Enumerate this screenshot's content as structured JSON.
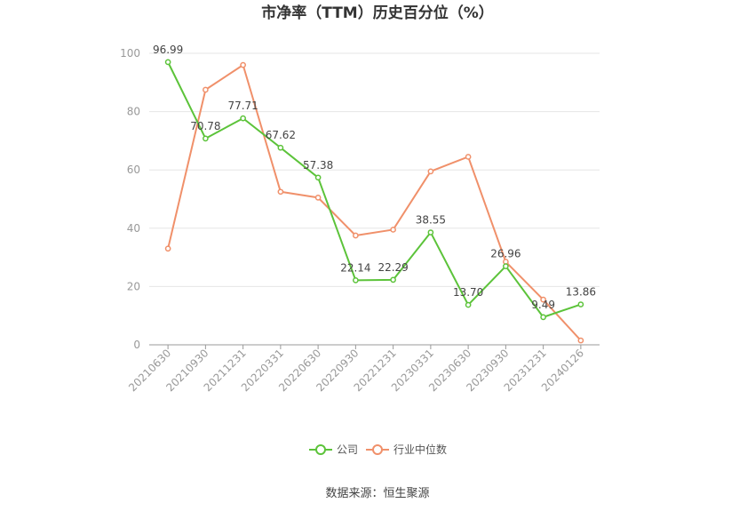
{
  "chart_data": {
    "type": "line",
    "title": "市净率（TTM）历史百分位（%）",
    "categories": [
      "20210630",
      "20210930",
      "20211231",
      "20220331",
      "20220630",
      "20220930",
      "20221231",
      "20230331",
      "20230630",
      "20230930",
      "20231231",
      "20240126"
    ],
    "series": [
      {
        "name": "公司",
        "color": "#5cc33a",
        "values": [
          96.99,
          70.78,
          77.71,
          67.62,
          57.38,
          22.14,
          22.29,
          38.55,
          13.7,
          26.96,
          9.49,
          13.86
        ],
        "labels": [
          "96.99",
          "70.78",
          "77.71",
          "67.62",
          "57.38",
          "22.14",
          "22.29",
          "38.55",
          "13.70",
          "26.96",
          "9.49",
          "13.86"
        ]
      },
      {
        "name": "行业中位数",
        "color": "#f0906a",
        "values": [
          33,
          87.5,
          96,
          52.5,
          50.5,
          37.5,
          39.5,
          59.5,
          64.5,
          28.5,
          15.5,
          1.5
        ]
      }
    ],
    "ylim": [
      0,
      100
    ],
    "yticks": [
      "0",
      "20",
      "40",
      "60",
      "80",
      "100"
    ],
    "grid": true,
    "legend": "bottom-center"
  },
  "source": "数据来源：恒生聚源"
}
